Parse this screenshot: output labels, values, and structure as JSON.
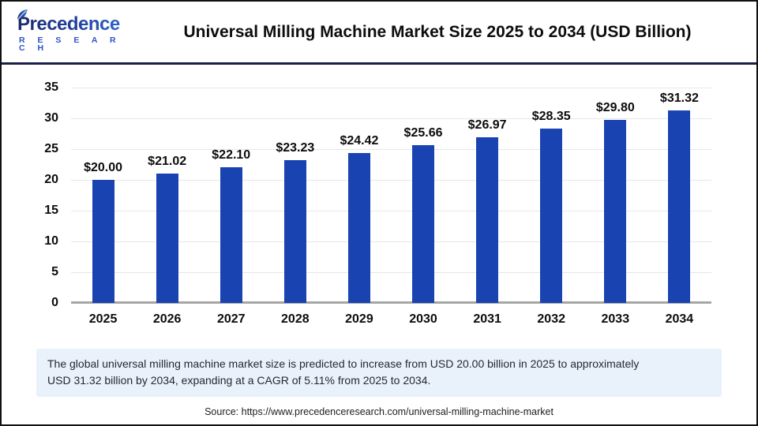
{
  "header": {
    "logo_name": "Precedence",
    "logo_sub": "R E S E A R C H",
    "title": "Universal Milling Machine Market Size 2025 to 2034 (USD Billion)"
  },
  "chart_data": {
    "type": "bar",
    "title": "Universal Milling Machine Market Size 2025 to 2034 (USD Billion)",
    "categories": [
      "2025",
      "2026",
      "2027",
      "2028",
      "2029",
      "2030",
      "2031",
      "2032",
      "2033",
      "2034"
    ],
    "values": [
      20.0,
      21.02,
      22.1,
      23.23,
      24.42,
      25.66,
      26.97,
      28.35,
      29.8,
      31.32
    ],
    "bar_labels": [
      "$20.00",
      "$21.02",
      "$22.10",
      "$23.23",
      "$24.42",
      "$25.66",
      "$26.97",
      "$28.35",
      "$29.80",
      "$31.32"
    ],
    "xlabel": "",
    "ylabel": "",
    "ylim": [
      0,
      35
    ],
    "ytick_step": 5,
    "yticks": [
      0,
      5,
      10,
      15,
      20,
      25,
      30,
      35
    ],
    "grid": true,
    "legend": false,
    "bar_color": "#1843b0"
  },
  "note": {
    "line1": "The global universal milling machine market size is predicted to increase from USD 20.00 billion in 2025 to approximately",
    "line2": "USD 31.32 billion by 2034, expanding at a CAGR of 5.11% from 2025 to 2034."
  },
  "source": {
    "text": "Source: https://www.precedenceresearch.com/universal-milling-machine-market"
  },
  "colors": {
    "bar": "#1843b0",
    "note_bg": "#e9f1fb",
    "header_separator": "#191d4a",
    "gridline": "#e7e7e7",
    "baseline": "#a6a6a6"
  }
}
